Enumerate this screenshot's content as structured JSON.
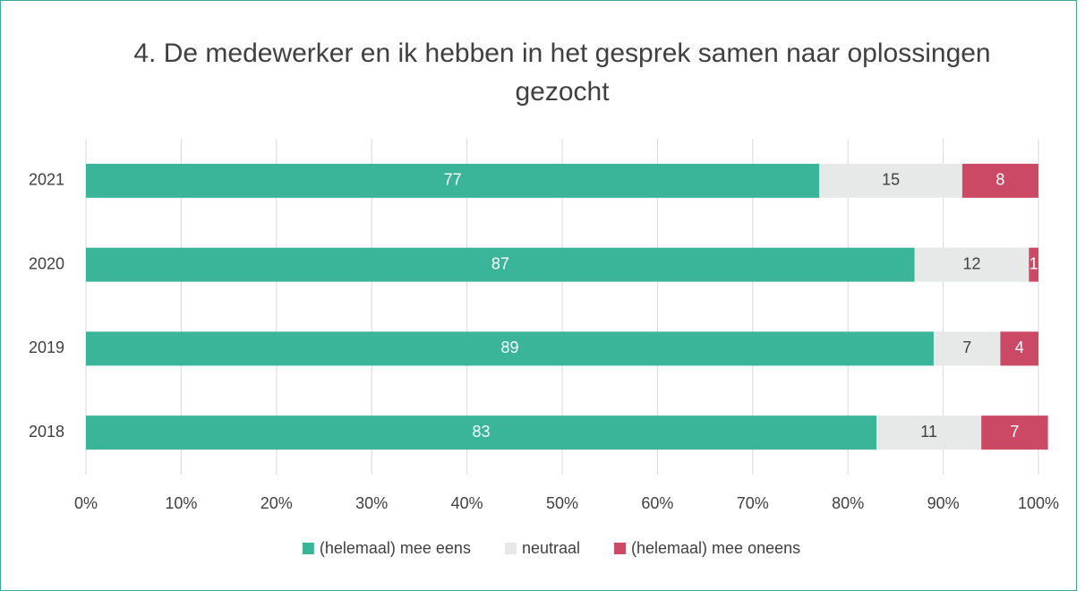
{
  "chart_data": {
    "type": "stacked_bar_horizontal",
    "title": "4. De medewerker en ik hebben in het gesprek samen naar oplossingen gezocht",
    "categories": [
      "2021",
      "2020",
      "2019",
      "2018"
    ],
    "series": [
      {
        "name": "(helemaal) mee eens",
        "color": "#3bb59a",
        "values": [
          77,
          87,
          89,
          83
        ]
      },
      {
        "name": "neutraal",
        "color": "#e7e9e9",
        "values": [
          15,
          12,
          7,
          11
        ]
      },
      {
        "name": "(helemaal) mee oneens",
        "color": "#cc4966",
        "values": [
          8,
          1,
          4,
          7
        ]
      }
    ],
    "xlim": [
      0,
      100
    ],
    "xticks": [
      {
        "value": 0,
        "label": "0%"
      },
      {
        "value": 10,
        "label": "10%"
      },
      {
        "value": 20,
        "label": "20%"
      },
      {
        "value": 30,
        "label": "30%"
      },
      {
        "value": 40,
        "label": "40%"
      },
      {
        "value": 50,
        "label": "50%"
      },
      {
        "value": 60,
        "label": "60%"
      },
      {
        "value": 70,
        "label": "70%"
      },
      {
        "value": 80,
        "label": "80%"
      },
      {
        "value": 90,
        "label": "90%"
      },
      {
        "value": 100,
        "label": "100%"
      }
    ],
    "grid": true,
    "legend": "bottom"
  }
}
